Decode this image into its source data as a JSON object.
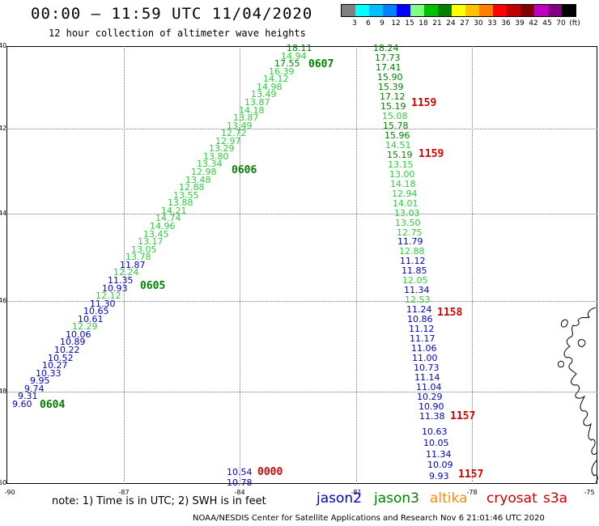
{
  "title": "00:00 – 11:59 UTC 11/04/2020",
  "subtitle": "12 hour collection of altimeter wave heights",
  "color_scale": {
    "colors": [
      "#808080",
      "#00ffff",
      "#00bfff",
      "#0080ff",
      "#0000ff",
      "#80ff80",
      "#00c000",
      "#008000",
      "#ffff00",
      "#ffc000",
      "#ff8000",
      "#ff0000",
      "#c00000",
      "#800000",
      "#c000c0",
      "#800080",
      "#000000"
    ],
    "labels": [
      "3",
      "6",
      "9",
      "12",
      "15",
      "18",
      "21",
      "24",
      "27",
      "30",
      "33",
      "36",
      "39",
      "42",
      "45",
      "70",
      "(ft)"
    ]
  },
  "axes": {
    "y_labels": [
      "40",
      "42",
      "44",
      "46",
      "48",
      "50"
    ],
    "x_labels": [
      "-90",
      "-87",
      "-84",
      "-81",
      "-78",
      "-75"
    ]
  },
  "track_a": [
    {
      "v": "18.11",
      "c": "#008000"
    },
    {
      "v": "14.94",
      "c": "#2ecc40"
    },
    {
      "v": "17.55",
      "c": "#008000"
    },
    {
      "v": "16.39",
      "c": "#2ecc40"
    },
    {
      "v": "14.12",
      "c": "#2ecc40"
    },
    {
      "v": "14.98",
      "c": "#2ecc40"
    },
    {
      "v": "13.49",
      "c": "#2ecc40"
    },
    {
      "v": "13.87",
      "c": "#2ecc40"
    },
    {
      "v": "14.18",
      "c": "#2ecc40"
    },
    {
      "v": "13.87",
      "c": "#2ecc40"
    },
    {
      "v": "13.49",
      "c": "#2ecc40"
    },
    {
      "v": "12.72",
      "c": "#2ecc40"
    },
    {
      "v": "12.97",
      "c": "#2ecc40"
    },
    {
      "v": "13.29",
      "c": "#2ecc40"
    },
    {
      "v": "13.80",
      "c": "#2ecc40"
    },
    {
      "v": "13.34",
      "c": "#2ecc40"
    },
    {
      "v": "12.98",
      "c": "#2ecc40"
    },
    {
      "v": "13.48",
      "c": "#2ecc40"
    },
    {
      "v": "12.88",
      "c": "#2ecc40"
    },
    {
      "v": "13.55",
      "c": "#2ecc40"
    },
    {
      "v": "13.88",
      "c": "#2ecc40"
    },
    {
      "v": "14.21",
      "c": "#2ecc40"
    },
    {
      "v": "14.74",
      "c": "#2ecc40"
    },
    {
      "v": "14.96",
      "c": "#2ecc40"
    },
    {
      "v": "13.45",
      "c": "#2ecc40"
    },
    {
      "v": "13.17",
      "c": "#2ecc40"
    },
    {
      "v": "13.05",
      "c": "#2ecc40"
    },
    {
      "v": "13.78",
      "c": "#2ecc40"
    },
    {
      "v": "11.87",
      "c": "#0000cc"
    },
    {
      "v": "12.24",
      "c": "#2ecc40"
    },
    {
      "v": "11.35",
      "c": "#0000cc"
    },
    {
      "v": "10.93",
      "c": "#0000cc"
    },
    {
      "v": "12.12",
      "c": "#2ecc40"
    },
    {
      "v": "11.30",
      "c": "#0000cc"
    },
    {
      "v": "10.65",
      "c": "#0000cc"
    },
    {
      "v": "10.61",
      "c": "#0000cc"
    },
    {
      "v": "12.29",
      "c": "#2ecc40"
    },
    {
      "v": "10.06",
      "c": "#0000cc"
    },
    {
      "v": "10.89",
      "c": "#0000cc"
    },
    {
      "v": "10.22",
      "c": "#0000cc"
    },
    {
      "v": "10.52",
      "c": "#0000cc"
    },
    {
      "v": "10.27",
      "c": "#0000cc"
    },
    {
      "v": "10.33",
      "c": "#0000cc"
    },
    {
      "v": "9.95",
      "c": "#0000cc"
    },
    {
      "v": "9.74",
      "c": "#0000cc"
    },
    {
      "v": "9.31",
      "c": "#0000cc"
    },
    {
      "v": "9.60",
      "c": "#0000cc"
    }
  ],
  "track_a_times": [
    "0607",
    "0606",
    "0605",
    "0604"
  ],
  "track_b": [
    {
      "v": "18.24",
      "c": "#008000"
    },
    {
      "v": "17.73",
      "c": "#008000"
    },
    {
      "v": "17.41",
      "c": "#008000"
    },
    {
      "v": "15.90",
      "c": "#008000"
    },
    {
      "v": "15.39",
      "c": "#008000"
    },
    {
      "v": "17.12",
      "c": "#008000"
    },
    {
      "v": "15.19",
      "c": "#008000"
    },
    {
      "v": "15.08",
      "c": "#2ecc40"
    },
    {
      "v": "15.78",
      "c": "#008000"
    },
    {
      "v": "15.96",
      "c": "#008000"
    },
    {
      "v": "14.51",
      "c": "#2ecc40"
    },
    {
      "v": "15.19",
      "c": "#008000"
    },
    {
      "v": "13.15",
      "c": "#2ecc40"
    },
    {
      "v": "13.00",
      "c": "#2ecc40"
    },
    {
      "v": "14.18",
      "c": "#2ecc40"
    },
    {
      "v": "12.94",
      "c": "#2ecc40"
    },
    {
      "v": "14.01",
      "c": "#2ecc40"
    },
    {
      "v": "13.03",
      "c": "#2ecc40"
    },
    {
      "v": "13.50",
      "c": "#2ecc40"
    },
    {
      "v": "12.75",
      "c": "#2ecc40"
    },
    {
      "v": "11.79",
      "c": "#0000cc"
    },
    {
      "v": "12.88",
      "c": "#2ecc40"
    },
    {
      "v": "11.12",
      "c": "#0000cc"
    },
    {
      "v": "11.85",
      "c": "#0000cc"
    },
    {
      "v": "12.05",
      "c": "#2ecc40"
    },
    {
      "v": "11.34",
      "c": "#0000cc"
    },
    {
      "v": "12.53",
      "c": "#2ecc40"
    },
    {
      "v": "11.24",
      "c": "#0000cc"
    },
    {
      "v": "10.86",
      "c": "#0000cc"
    },
    {
      "v": "11.12",
      "c": "#0000cc"
    },
    {
      "v": "11.17",
      "c": "#0000cc"
    },
    {
      "v": "11.06",
      "c": "#0000cc"
    },
    {
      "v": "11.00",
      "c": "#0000cc"
    },
    {
      "v": "10.73",
      "c": "#0000cc"
    },
    {
      "v": "11.14",
      "c": "#0000cc"
    },
    {
      "v": "11.04",
      "c": "#0000cc"
    },
    {
      "v": "10.29",
      "c": "#0000cc"
    },
    {
      "v": "10.90",
      "c": "#0000cc"
    },
    {
      "v": "11.38",
      "c": "#0000cc"
    }
  ],
  "track_c": [
    {
      "v": "10.63",
      "c": "#0000cc"
    },
    {
      "v": "10.05",
      "c": "#0000cc"
    },
    {
      "v": "11.34",
      "c": "#0000cc"
    },
    {
      "v": "10.09",
      "c": "#0000cc"
    },
    {
      "v": "9.93",
      "c": "#0000cc"
    }
  ],
  "track_b_times": [
    "1159",
    "1159",
    "1158",
    "1157",
    "1157"
  ],
  "track_d": [
    {
      "v": "10.54",
      "c": "#0000cc"
    },
    {
      "v": "10.78",
      "c": "#0000cc"
    }
  ],
  "track_d_time": "0000",
  "note": "note: 1) Time is in UTC; 2) SWH is in feet",
  "legend": [
    {
      "name": "jason2",
      "color": "#0000cc"
    },
    {
      "name": "jason3",
      "color": "#008000"
    },
    {
      "name": "altika",
      "color": "#ff8c00"
    },
    {
      "name": "cryosat",
      "color": "#cc0000"
    },
    {
      "name": "s3a",
      "color": "#cc0000"
    }
  ],
  "footer": "NOAA/NESDIS Center for Satellite Applications and Research    Nov  6 21:01:46 UTC 2020"
}
